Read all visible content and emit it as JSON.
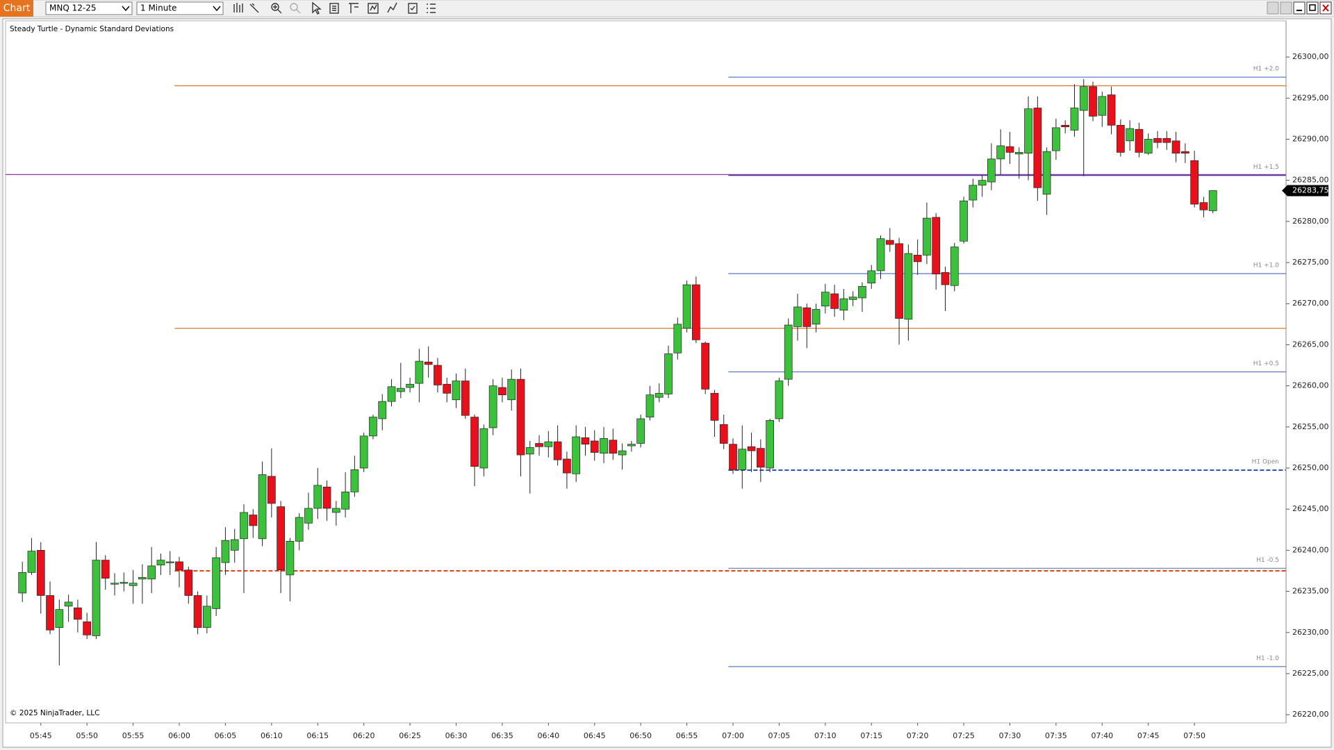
{
  "toolbar": {
    "tab": "Chart",
    "instrument": "MNQ 12-25",
    "interval": "1 Minute"
  },
  "chart_data": {
    "type": "candlestick",
    "title": "Steady Turtle - Dynamic Standard Deviations",
    "copyright": "© 2025 NinjaTrader, LLC",
    "up_color": "#3cc13c",
    "down_color": "#e8101a",
    "x": [
      "05:43",
      "05:44",
      "05:45",
      "05:46",
      "05:47",
      "05:48",
      "05:49",
      "05:50",
      "05:51",
      "05:52",
      "05:53",
      "05:54",
      "05:55",
      "05:56",
      "05:57",
      "05:58",
      "05:59",
      "06:00",
      "06:01",
      "06:02",
      "06:03",
      "06:04",
      "06:05",
      "06:06",
      "06:07",
      "06:08",
      "06:09",
      "06:10",
      "06:11",
      "06:12",
      "06:13",
      "06:14",
      "06:15",
      "06:16",
      "06:17",
      "06:18",
      "06:19",
      "06:20",
      "06:21",
      "06:22",
      "06:23",
      "06:24",
      "06:25",
      "06:26",
      "06:27",
      "06:28",
      "06:29",
      "06:30",
      "06:31",
      "06:32",
      "06:33",
      "06:34",
      "06:35",
      "06:36",
      "06:37",
      "06:38",
      "06:39",
      "06:40",
      "06:41",
      "06:42",
      "06:43",
      "06:44",
      "06:45",
      "06:46",
      "06:47",
      "06:48",
      "06:49",
      "06:50",
      "06:51",
      "06:52",
      "06:53",
      "06:54",
      "06:55",
      "06:56",
      "06:57",
      "06:58",
      "06:59",
      "07:00",
      "07:01",
      "07:02",
      "07:03",
      "07:04",
      "07:05",
      "07:06",
      "07:07",
      "07:08",
      "07:09",
      "07:10",
      "07:11",
      "07:12",
      "07:13",
      "07:14",
      "07:15",
      "07:16",
      "07:17",
      "07:18",
      "07:19",
      "07:20",
      "07:21",
      "07:22",
      "07:23",
      "07:24",
      "07:25",
      "07:26",
      "07:27",
      "07:28",
      "07:29",
      "07:30",
      "07:31",
      "07:32",
      "07:33",
      "07:34",
      "07:35",
      "07:36",
      "07:37",
      "07:38",
      "07:39",
      "07:40",
      "07:41",
      "07:42",
      "07:43",
      "07:44",
      "07:45",
      "07:46",
      "07:47",
      "07:48",
      "07:49",
      "07:50",
      "07:51",
      "07:52"
    ],
    "open": [
      26234.8,
      26237.3,
      26240.0,
      26234.5,
      26230.6,
      26233.2,
      26233.0,
      26231.3,
      26229.6,
      26238.8,
      26235.9,
      26236.0,
      26235.7,
      26236.5,
      26236.5,
      26238.2,
      26238.5,
      26238.6,
      26237.6,
      26234.5,
      26230.6,
      26232.9,
      26238.5,
      26240.0,
      26241.4,
      26244.3,
      26241.4,
      26249.0,
      26245.3,
      26237.0,
      26241.1,
      26243.3,
      26245.1,
      26247.7,
      26244.6,
      26245.0,
      26247.1,
      26250.0,
      26253.9,
      26256.0,
      26258.1,
      26259.3,
      26259.8,
      26260.3,
      26262.9,
      26262.5,
      26260.2,
      26258.3,
      26260.6,
      26256.2,
      26250.0,
      26254.9,
      26259.8,
      26258.3,
      26260.8,
      26251.7,
      26253.0,
      26252.6,
      26253.2,
      26251.1,
      26249.3,
      26253.7,
      26253.3,
      26251.8,
      26253.4,
      26251.6,
      26252.7,
      26253.0,
      26256.2,
      26258.6,
      26259.0,
      26264.0,
      26267.0,
      26272.3,
      26265.2,
      26259.1,
      26255.3,
      26252.9,
      26249.8,
      26252.6,
      26252.4,
      26250.0,
      26256.0,
      26260.8,
      26267.2,
      26269.5,
      26267.5,
      26269.7,
      26271.2,
      26269.2,
      26270.5,
      26270.7,
      26272.5,
      26274.0,
      26277.7,
      26277.3,
      26268.1,
      26275.9,
      26275.9,
      26280.5,
      26273.8,
      26272.2,
      26277.6,
      26282.6,
      26284.4,
      26284.8,
      26287.6,
      26289.1,
      26288.2,
      26288.3,
      26293.8,
      26283.3,
      26288.6,
      26291.7,
      26291.1,
      26293.5,
      26296.4,
      26292.9,
      26295.4,
      26291.7,
      26289.8,
      26291.2,
      26288.3,
      26290.1,
      26290.1,
      26289.8,
      26288.5,
      26287.4,
      26282.3,
      26281.3
    ],
    "high": [
      26238.6,
      26241.5,
      26241.0,
      26236.2,
      26234.0,
      26234.6,
      26234.0,
      26232.4,
      26241.0,
      26239.4,
      26237.2,
      26237.3,
      26237.6,
      26238.3,
      26240.4,
      26239.6,
      26239.9,
      26239.2,
      26238.0,
      26235.0,
      26234.5,
      26240.4,
      26242.8,
      26242.6,
      26245.6,
      26245.0,
      26250.8,
      26252.4,
      26246.0,
      26241.5,
      26244.5,
      26247.0,
      26250.0,
      26248.5,
      26246.0,
      26249.5,
      26251.5,
      26254.3,
      26256.5,
      26259.0,
      26260.8,
      26262.8,
      26261.0,
      26264.5,
      26264.8,
      26263.4,
      26261.0,
      26261.5,
      26262.1,
      26256.5,
      26255.3,
      26260.8,
      26261.0,
      26262.0,
      26262.1,
      26253.3,
      26254.0,
      26254.5,
      26255.2,
      26252.0,
      26255.2,
      26255.0,
      26254.6,
      26255.0,
      26254.8,
      26253.0,
      26253.3,
      26256.5,
      26260.0,
      26260.3,
      26264.9,
      26268.3,
      26272.8,
      26273.3,
      26265.4,
      26259.5,
      26256.5,
      26253.6,
      26255.2,
      26254.3,
      26253.5,
      26256.0,
      26261.0,
      26268.2,
      26271.2,
      26270.0,
      26270.0,
      26272.4,
      26272.3,
      26271.8,
      26271.5,
      26272.6,
      26274.7,
      26278.3,
      26279.2,
      26278.0,
      26277.2,
      26277.8,
      26282.3,
      26281.0,
      26274.5,
      26277.4,
      26283.0,
      26285.2,
      26285.6,
      26289.5,
      26291.2,
      26290.9,
      26289.0,
      26295.2,
      26295.2,
      26289.0,
      26292.5,
      26292.3,
      26296.7,
      26297.3,
      26297.0,
      26295.8,
      26296.4,
      26292.4,
      26292.3,
      26292.0,
      26290.7,
      26291.0,
      26291.0,
      26290.9,
      26289.5,
      26288.6,
      26283.0,
      26283.75
    ],
    "low": [
      26233.7,
      26237.0,
      26232.3,
      26229.8,
      26226.0,
      26231.3,
      26230.0,
      26229.2,
      26229.2,
      26235.2,
      26234.5,
      26235.0,
      26233.5,
      26233.5,
      26234.8,
      26237.0,
      26237.0,
      26235.5,
      26233.5,
      26229.8,
      26229.9,
      26232.0,
      26237.0,
      26238.5,
      26234.8,
      26241.5,
      26240.5,
      26244.0,
      26234.8,
      26233.8,
      26240.0,
      26242.5,
      26243.8,
      26243.6,
      26243.0,
      26244.0,
      26246.5,
      26249.5,
      26253.5,
      26254.6,
      26257.5,
      26258.5,
      26259.2,
      26258.0,
      26261.0,
      26259.2,
      26258.0,
      26257.3,
      26256.0,
      26247.8,
      26249.0,
      26254.0,
      26258.0,
      26257.0,
      26249.0,
      26246.9,
      26251.5,
      26251.3,
      26250.3,
      26247.5,
      26248.3,
      26251.5,
      26250.9,
      26250.6,
      26251.0,
      26249.8,
      26252.0,
      26252.5,
      26255.8,
      26258.0,
      26258.5,
      26263.2,
      26266.5,
      26265.2,
      26259.0,
      26253.8,
      26252.3,
      26249.3,
      26247.5,
      26249.5,
      26248.3,
      26249.5,
      26255.6,
      26260.0,
      26265.5,
      26264.6,
      26266.5,
      26268.8,
      26268.4,
      26268.0,
      26269.7,
      26269.0,
      26271.8,
      26273.0,
      26276.3,
      26265.0,
      26265.5,
      26273.5,
      26274.8,
      26271.7,
      26269.1,
      26271.5,
      26277.3,
      26281.7,
      26283.0,
      26283.8,
      26285.7,
      26287.0,
      26285.2,
      26285.0,
      26282.5,
      26280.8,
      26287.5,
      26290.7,
      26290.3,
      26285.5,
      26292.2,
      26291.5,
      26290.6,
      26287.9,
      26288.6,
      26287.8,
      26288.1,
      26288.9,
      26288.7,
      26287.2,
      26287.1,
      26281.7,
      26280.5,
      26281.0
    ],
    "close": [
      26237.3,
      26239.9,
      26234.5,
      26230.3,
      26232.8,
      26233.7,
      26231.6,
      26229.7,
      26238.8,
      26236.6,
      26236.0,
      26236.1,
      26236.0,
      26236.7,
      26238.1,
      26238.8,
      26238.6,
      26237.6,
      26234.5,
      26230.6,
      26233.2,
      26239.1,
      26241.2,
      26241.3,
      26244.6,
      26243.0,
      26249.2,
      26245.7,
      26237.6,
      26241.1,
      26244.0,
      26245.1,
      26247.9,
      26245.1,
      26245.1,
      26247.1,
      26249.8,
      26253.9,
      26256.2,
      26258.1,
      26259.9,
      26259.7,
      26260.2,
      26263.0,
      26262.6,
      26260.1,
      26259.1,
      26260.6,
      26256.4,
      26250.2,
      26254.8,
      26260.0,
      26258.9,
      26260.8,
      26251.6,
      26252.5,
      26252.6,
      26253.2,
      26251.0,
      26249.4,
      26253.8,
      26252.9,
      26251.9,
      26253.6,
      26251.8,
      26252.1,
      26252.9,
      26256.0,
      26258.9,
      26259.1,
      26263.9,
      26267.5,
      26272.3,
      26265.6,
      26259.6,
      26255.8,
      26253.0,
      26249.8,
      26252.3,
      26252.1,
      26250.1,
      26255.8,
      26260.6,
      26267.4,
      26269.6,
      26267.2,
      26269.3,
      26271.4,
      26269.4,
      26270.6,
      26270.8,
      26272.1,
      26274.0,
      26277.9,
      26277.2,
      26268.2,
      26276.1,
      26275.1,
      26280.4,
      26273.6,
      26272.3,
      26276.9,
      26282.5,
      26284.4,
      26285.0,
      26287.6,
      26289.2,
      26288.4,
      26288.4,
      26293.7,
      26284.1,
      26288.5,
      26291.4,
      26291.5,
      26293.8,
      26296.4,
      26292.8,
      26295.2,
      26291.7,
      26288.4,
      26291.3,
      26288.4,
      26290.0,
      26289.6,
      26289.6,
      26288.3,
      26288.3,
      26282.1,
      26281.4,
      26283.75
    ],
    "ylim": [
      26219,
      26304.4
    ],
    "yticks": [
      {
        "value": 26220,
        "label": "26220,00"
      },
      {
        "value": 26225,
        "label": "26225,00"
      },
      {
        "value": 26230,
        "label": "26230,00"
      },
      {
        "value": 26235,
        "label": "26235,00"
      },
      {
        "value": 26240,
        "label": "26240,00"
      },
      {
        "value": 26245,
        "label": "26245,00"
      },
      {
        "value": 26250,
        "label": "26250,00"
      },
      {
        "value": 26255,
        "label": "26255,00"
      },
      {
        "value": 26260,
        "label": "26260,00"
      },
      {
        "value": 26265,
        "label": "26265,00"
      },
      {
        "value": 26270,
        "label": "26270,00"
      },
      {
        "value": 26275,
        "label": "26275,00"
      },
      {
        "value": 26280,
        "label": "26280,00"
      },
      {
        "value": 26285,
        "label": "26285,00"
      },
      {
        "value": 26290,
        "label": "26290,00"
      },
      {
        "value": 26295,
        "label": "26295,00"
      },
      {
        "value": 26300,
        "label": "26300,00"
      }
    ],
    "xticks": [
      "05:45",
      "05:50",
      "05:55",
      "06:00",
      "06:05",
      "06:10",
      "06:15",
      "06:20",
      "06:25",
      "06:30",
      "06:35",
      "06:40",
      "06:45",
      "06:50",
      "06:55",
      "07:00",
      "07:05",
      "07:10",
      "07:15",
      "07:20",
      "07:25",
      "07:30",
      "07:35",
      "07:40",
      "07:45",
      "07:50"
    ],
    "last_price": {
      "value": 26283.75,
      "label": "26283,75"
    },
    "levels": [
      {
        "value": 26296.5,
        "color": "#d9782d",
        "start": "06:00"
      },
      {
        "value": 26267,
        "color": "#d9782d",
        "start": "06:00"
      },
      {
        "value": 26237.5,
        "color": "#e0451a",
        "start": "06:00",
        "dash": true
      },
      {
        "value": 26285.7,
        "color": "#8a3a9a"
      },
      {
        "value": 26297.55,
        "color": "#5a78c8",
        "start": "07:00",
        "label": "H1 +2.0"
      },
      {
        "value": 26285.6,
        "color": "#4a3aa0",
        "start": "07:00",
        "label": "H1 +1.5"
      },
      {
        "value": 26273.65,
        "color": "#5a78c8",
        "start": "07:00",
        "label": "H1 +1.0"
      },
      {
        "value": 26261.7,
        "color": "#5a78c8",
        "start": "07:00",
        "label": "H1 +0.5"
      },
      {
        "value": 26249.75,
        "color": "#3050c0",
        "start": "07:00",
        "label": "H1 Open",
        "dash": true
      },
      {
        "value": 26237.8,
        "color": "#8090a8",
        "start": "07:00",
        "label": "H1 -0.5"
      },
      {
        "value": 26225.85,
        "color": "#5a78c8",
        "start": "07:00",
        "label": "H1 -1.0"
      }
    ]
  }
}
